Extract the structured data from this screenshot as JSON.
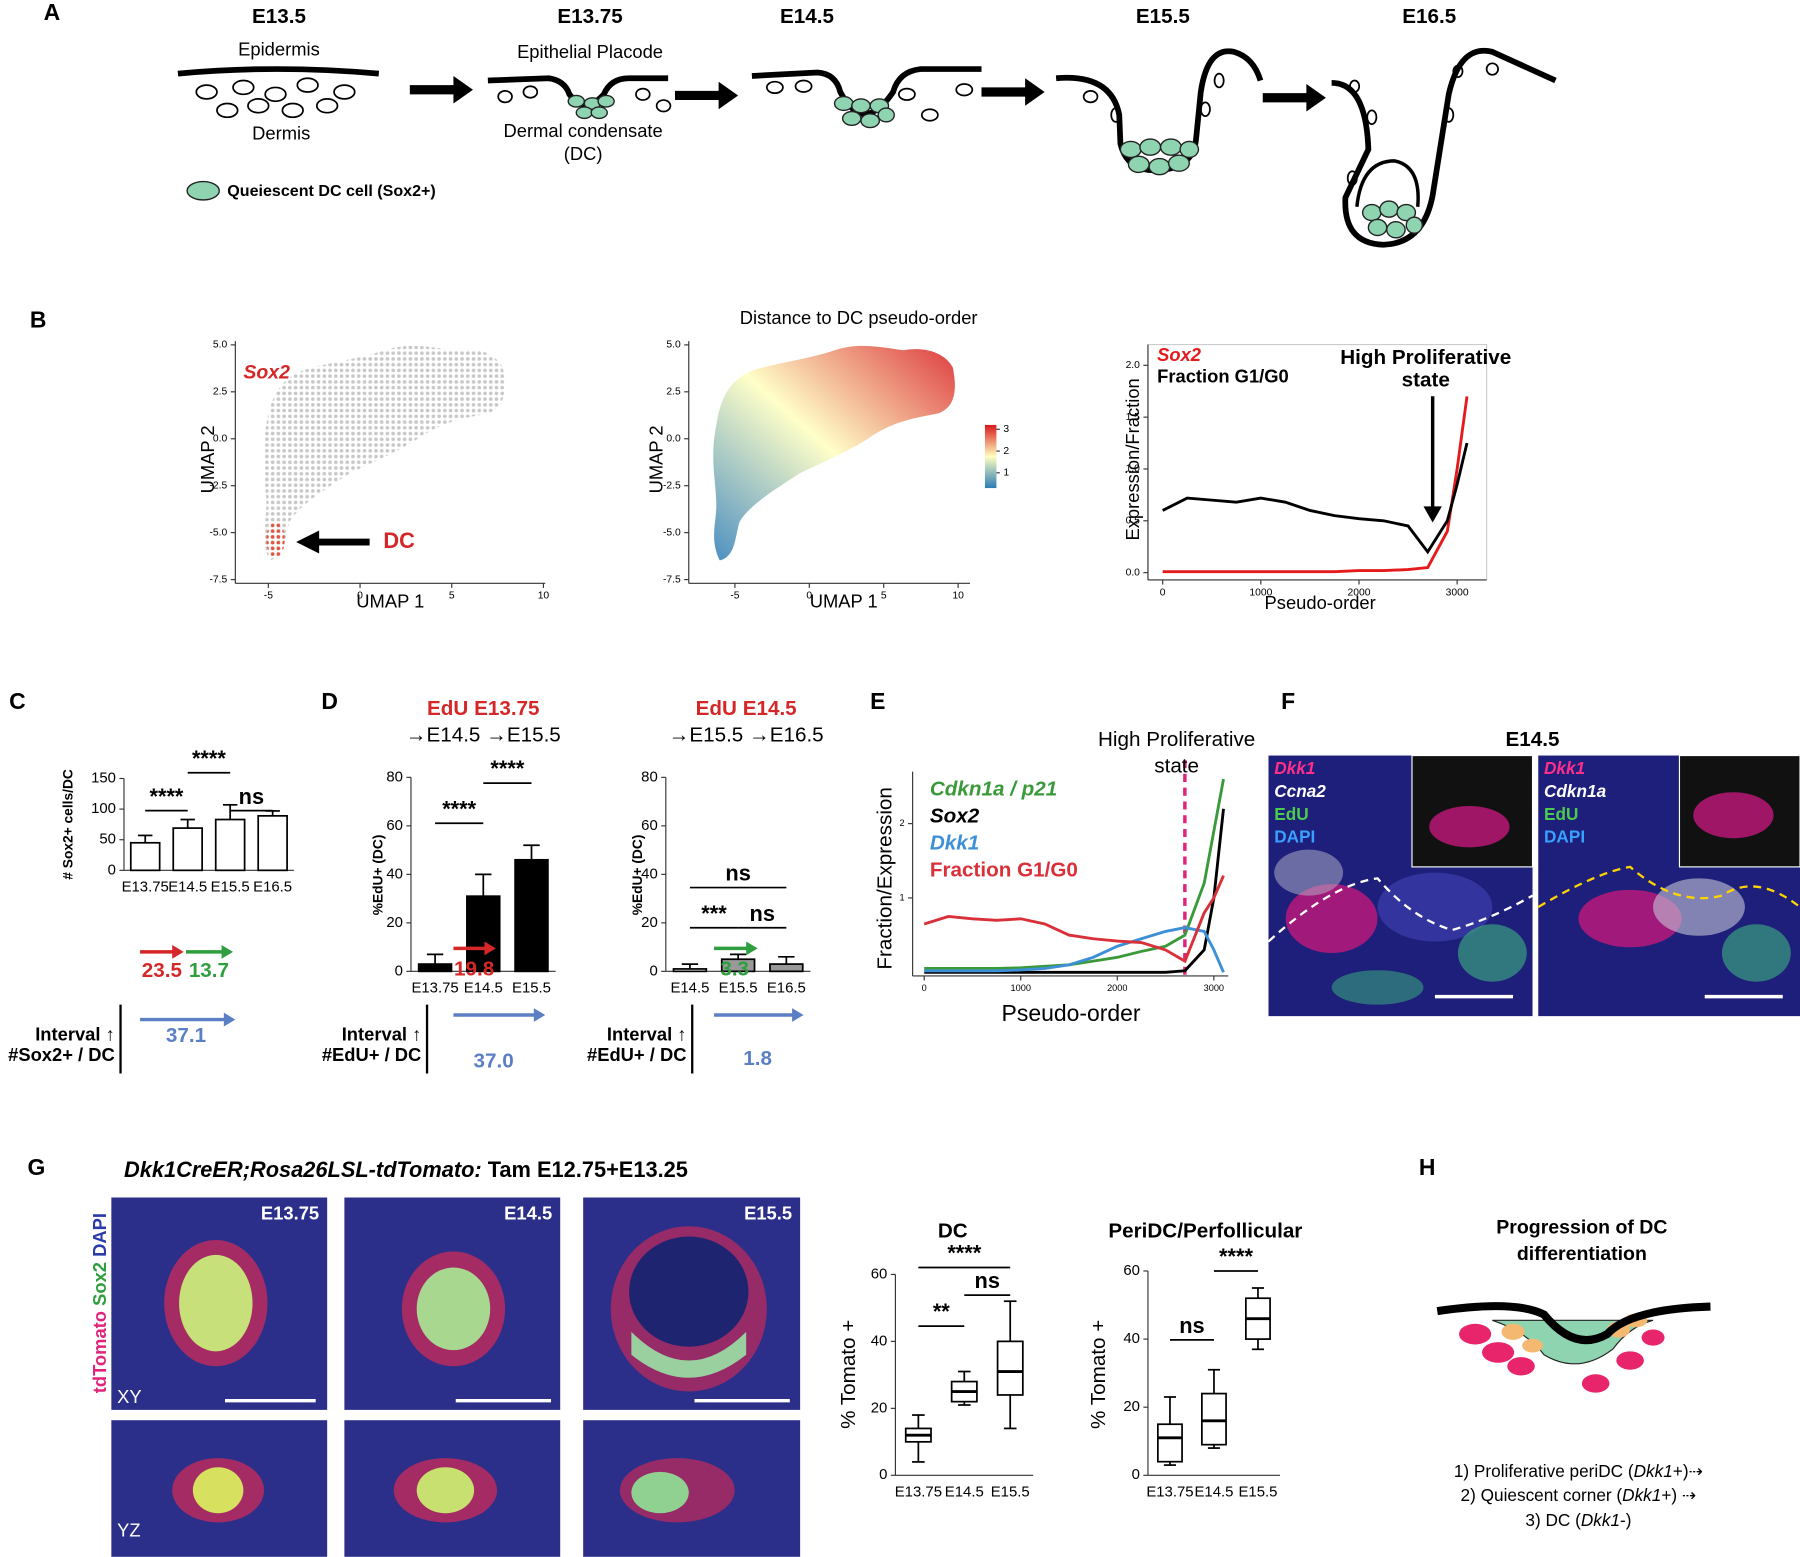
{
  "panel_labels": [
    "A",
    "B",
    "C",
    "D",
    "E",
    "F",
    "G",
    "H"
  ],
  "panel_a": {
    "stages": [
      "E13.5",
      "E13.75",
      "E14.5",
      "E15.5",
      "E16.5"
    ],
    "epidermis": "Epidermis",
    "dermis": "Dermis",
    "placode": "Epithelial Placode",
    "dc": [
      "Dermal condensate",
      "(DC)"
    ],
    "legend": "Queiescent DC cell (Sox2+)"
  },
  "panel_b": {
    "title": "Distance to DC pseudo-order",
    "gene": "Sox2",
    "dc_label": "DC"
  },
  "panel_f": {
    "stage": "E14.5",
    "stains": [
      [
        "Dkk1",
        "Ccna2",
        "EdU",
        "DAPI"
      ],
      [
        "Dkk1",
        "Cdkn1a",
        "EdU",
        "DAPI"
      ]
    ]
  },
  "panel_g": {
    "title_italic": "Dkk1CreER;Rosa26LSL-tdTomato:",
    "title_rest": " Tam E12.75+E13.25",
    "stains": [
      "tdTomato",
      "Sox2",
      "DAPI"
    ],
    "stages": [
      "E13.75",
      "E14.5",
      "E15.5"
    ],
    "views": [
      "XY",
      "YZ"
    ]
  },
  "panel_h": {
    "title": [
      "Progression of DC",
      "differentiation"
    ],
    "steps": [
      [
        "1) Proliferative periDC (",
        "Dkk1",
        "+)⇢"
      ],
      [
        "2) Quiescent corner (",
        "Dkk1",
        "+) ⇢"
      ],
      [
        "3) DC (",
        "Dkk1",
        "-)"
      ]
    ]
  },
  "chart_data": [
    {
      "type": "umap",
      "x_label": "UMAP 1",
      "y_label": "UMAP 2",
      "color": "#c8c8c8",
      "xlim": [
        -6.8,
        10.1
      ],
      "ylim": [
        -7.7,
        5.2
      ],
      "xticks": [
        -5,
        0,
        5,
        10
      ],
      "yticks": [
        -7.5,
        {
          "value": -5,
          "label": "-5.0"
        },
        -2.5,
        {
          "value": 0,
          "label": "0.0"
        },
        2.5,
        {
          "value": 5,
          "label": "5.0"
        }
      ]
    },
    {
      "type": "umap",
      "x_label": "UMAP 1",
      "y_label": "UMAP 2",
      "xlim": [
        -8.1,
        10.8
      ],
      "ylim": [
        -7.7,
        5.2
      ],
      "xticks": [
        -5,
        0,
        5,
        10
      ],
      "yticks": [
        -7.5,
        {
          "value": -5,
          "label": "-5.0"
        },
        -2.5,
        {
          "value": 0,
          "label": "0.0"
        },
        2.5,
        {
          "value": 5,
          "label": "5.0"
        }
      ],
      "color_scale": {
        "lim": [
          0.3,
          3.2
        ],
        "ticks": [
          1,
          2,
          3
        ],
        "colors": [
          "#2c7bb6",
          "#ffffbf",
          "#d7191c"
        ]
      }
    },
    {
      "type": "line",
      "x_label": "Pseudo-order",
      "y_label": "Expression/Fraction",
      "annotation": [
        "High Proliferative",
        "state"
      ],
      "x": [
        0,
        250,
        500,
        750,
        1000,
        1250,
        1500,
        1750,
        2000,
        2250,
        2500,
        2700,
        2900,
        3000,
        3100
      ],
      "series": [
        {
          "name": "Sox2",
          "color": "#e41a1c",
          "values": [
            0.01,
            0.01,
            0.01,
            0.01,
            0.01,
            0.01,
            0.01,
            0.01,
            0.02,
            0.02,
            0.03,
            0.05,
            0.4,
            1.0,
            1.7
          ]
        },
        {
          "name": "Fraction G1/G0",
          "color": "#000000",
          "values": [
            0.6,
            0.72,
            0.7,
            0.68,
            0.72,
            0.68,
            0.6,
            0.55,
            0.52,
            0.5,
            0.45,
            0.2,
            0.5,
            0.85,
            1.25
          ]
        }
      ],
      "xlim": [
        -150,
        3300
      ],
      "ylim": [
        -0.07,
        2.2
      ],
      "xticks": [
        0,
        1000,
        2000,
        3000
      ],
      "yticks": [
        {
          "value": 0,
          "label": "0.0"
        },
        0.5,
        {
          "value": 1,
          "label": "1.0"
        },
        1.5,
        {
          "value": 2,
          "label": "2.0"
        }
      ]
    },
    {
      "type": "bar",
      "y_label": "# Sox2+ cells/DC",
      "categories": [
        "E13.75",
        "E14.5",
        "E15.5",
        "E16.5"
      ],
      "values": [
        45,
        69,
        83,
        89
      ],
      "errors": [
        12,
        14,
        24,
        8
      ],
      "colors": [
        "#ffffff",
        "#ffffff",
        "#ffffff",
        "#ffffff"
      ],
      "ylim": [
        0,
        150
      ],
      "yticks": [
        0,
        50,
        100,
        150
      ],
      "significance": [
        "****",
        "****",
        "ns"
      ],
      "interval_label": [
        "Interval ↑",
        "#Sox2+ / DC"
      ],
      "intervals": [
        {
          "value": 23.5,
          "color": "#d62728"
        },
        {
          "value": 13.7,
          "color": "#2e9e3e"
        },
        {
          "value": 37.1,
          "color": "#5b7fc4"
        }
      ]
    },
    {
      "type": "bar",
      "title": "EdU E13.75",
      "subtitle": "→E14.5 →E15.5",
      "y_label": "%EdU+ (DC)",
      "categories": [
        "E13.75",
        "E14.5",
        "E15.5"
      ],
      "values": [
        3,
        31,
        46
      ],
      "errors": [
        4,
        9,
        6
      ],
      "colors": [
        "#000000",
        "#000000",
        "#000000"
      ],
      "ylim": [
        0,
        80
      ],
      "yticks": [
        0,
        20,
        40,
        60,
        80
      ],
      "significance": [
        "****",
        "****"
      ],
      "interval_label": [
        "Interval ↑",
        "#EdU+ / DC"
      ],
      "intervals": [
        {
          "value": 19.8,
          "color": "#d62728"
        },
        {
          "value": 37,
          "label": "37.0",
          "color": "#5b7fc4"
        }
      ]
    },
    {
      "type": "bar",
      "title": "EdU E14.5",
      "subtitle": "→E15.5 →E16.5",
      "y_label": "%EdU+ (DC)",
      "categories": [
        "E14.5",
        "E15.5",
        "E16.5"
      ],
      "values": [
        1,
        5,
        3
      ],
      "errors": [
        2,
        2,
        3
      ],
      "colors": [
        "#ffffff",
        "#999999",
        "#999999"
      ],
      "ylim": [
        0,
        80
      ],
      "yticks": [
        0,
        20,
        40,
        60,
        80
      ],
      "significance": [
        "ns",
        "***",
        "ns"
      ],
      "interval_label": [
        "Interval ↑",
        "#EdU+ / DC"
      ],
      "intervals": [
        {
          "value": 3.3,
          "color": "#2e9e3e"
        },
        {
          "value": 1.8,
          "color": "#5b7fc4"
        }
      ]
    },
    {
      "type": "line",
      "x_label": "Pseudo-order",
      "y_label": "Fraction/Expression",
      "annotation": [
        "High Proliferative",
        "state"
      ],
      "threshold_x": 2700,
      "x": [
        0,
        250,
        500,
        750,
        1000,
        1250,
        1500,
        1750,
        2000,
        2250,
        2500,
        2700,
        2900,
        3000,
        3100
      ],
      "series": [
        {
          "name": "Cdkn1a / p21",
          "color": "#3a9a3a",
          "values": [
            0.05,
            0.05,
            0.05,
            0.05,
            0.06,
            0.08,
            0.1,
            0.15,
            0.2,
            0.28,
            0.35,
            0.5,
            1.2,
            1.9,
            2.6
          ]
        },
        {
          "name": "Sox2",
          "color": "#000000",
          "values": [
            0,
            0,
            0,
            0,
            0,
            0,
            0,
            0,
            0,
            0,
            0,
            0.02,
            0.3,
            1.0,
            2.2
          ]
        },
        {
          "name": "Dkk1",
          "color": "#3d8fd6",
          "values": [
            0.02,
            0.02,
            0.02,
            0.02,
            0.03,
            0.05,
            0.1,
            0.2,
            0.35,
            0.45,
            0.55,
            0.6,
            0.55,
            0.3,
            0
          ]
        },
        {
          "name": "Fraction G1/G0",
          "color": "#d9303a",
          "values": [
            0.65,
            0.75,
            0.72,
            0.7,
            0.72,
            0.65,
            0.5,
            0.45,
            0.42,
            0.4,
            0.3,
            0.15,
            0.8,
            1.0,
            1.3
          ]
        }
      ],
      "xlim": [
        -120,
        3150
      ],
      "ylim": [
        -0.05,
        2.7
      ],
      "xticks": [
        0,
        1000,
        2000,
        3000
      ],
      "yticks": [
        1,
        2
      ]
    },
    {
      "type": "box",
      "title": "DC",
      "y_label": "% Tomato +",
      "categories": [
        "E13.75",
        "E14.5",
        "E15.5"
      ],
      "boxes": [
        {
          "min": 4,
          "q1": 10,
          "median": 12,
          "q3": 14,
          "max": 18
        },
        {
          "min": 21,
          "q1": 22,
          "median": 25,
          "q3": 28,
          "max": 31
        },
        {
          "min": 14,
          "q1": 24,
          "median": 31,
          "q3": 40,
          "max": 52
        }
      ],
      "ylim": [
        0,
        60
      ],
      "yticks": [
        0,
        20,
        40,
        60
      ],
      "significance": [
        "****",
        "**",
        "ns"
      ]
    },
    {
      "type": "box",
      "title": "PeriDC/Perfollicular",
      "y_label": "% Tomato +",
      "categories": [
        "E13.75",
        "E14.5",
        "E15.5"
      ],
      "boxes": [
        {
          "min": 3,
          "q1": 4,
          "median": 11,
          "q3": 15,
          "max": 23
        },
        {
          "min": 8,
          "q1": 9,
          "median": 16,
          "q3": 24,
          "max": 31
        },
        {
          "min": 37,
          "q1": 40,
          "median": 46,
          "q3": 52,
          "max": 55
        }
      ],
      "ylim": [
        0,
        60
      ],
      "yticks": [
        0,
        20,
        40,
        60
      ],
      "significance": [
        "ns",
        "****"
      ]
    }
  ]
}
